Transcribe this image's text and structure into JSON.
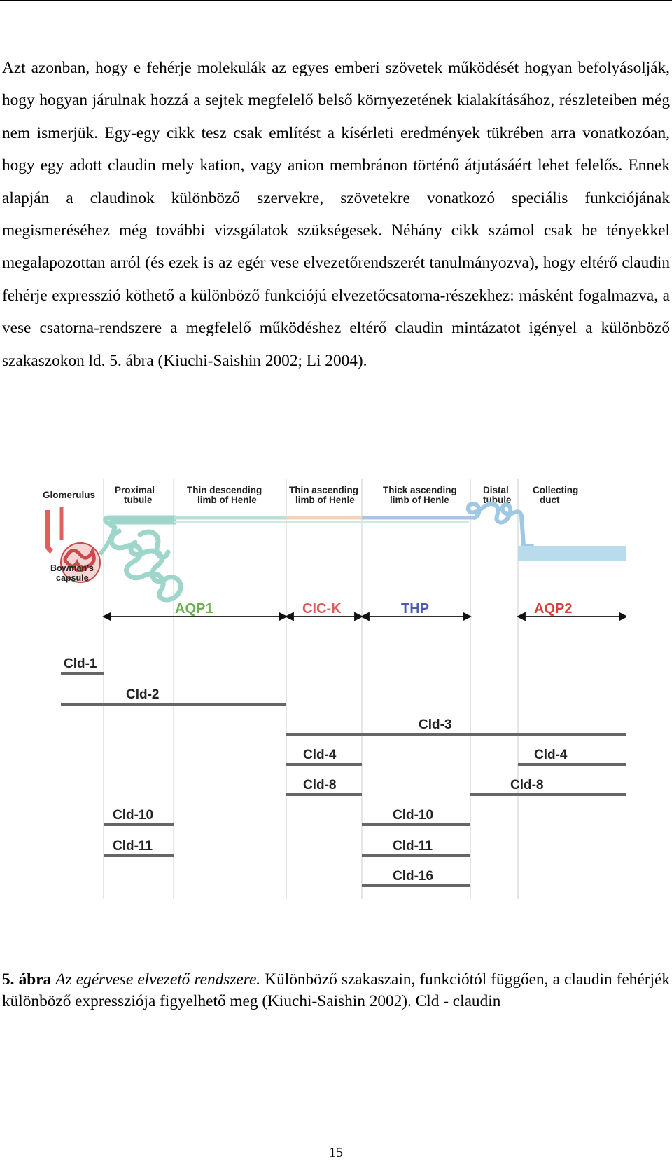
{
  "paragraph": "Azt azonban, hogy e fehérje molekulák az egyes emberi szövetek működését hogyan befolyásolják, hogy hogyan járulnak hozzá a sejtek megfelelő belső környezetének kialakításához, részleteiben még nem ismerjük. Egy-egy cikk tesz csak említést a kísérleti eredmények tükrében arra vonatkozóan, hogy egy adott claudin mely kation, vagy anion membránon történő átjutásáért lehet felelős. Ennek alapján a claudinok különböző szervekre, szövetekre vonatkozó speciális funkciójának megismeréséhez még további vizsgálatok szükségesek. Néhány cikk számol csak be tényekkel megalapozottan arról (és ezek is az egér vese elvezetőrendszerét tanulmányozva), hogy eltérő claudin fehérje expresszió köthető a különböző funkciójú elvezetőcsatorna-részekhez: másként fogalmazva, a vese csatorna-rendszere a megfelelő működéshez eltérő claudin mintázatot igényel a különböző szakaszokon ld. 5. ábra (Kiuchi-Saishin 2002; Li 2004).",
  "figure": {
    "segments": [
      [
        "Glomerulus"
      ],
      [
        "Proximal",
        "tubule"
      ],
      [
        "Thin descending",
        "limb of Henle"
      ],
      [
        "Thin ascending",
        "limb of Henle"
      ],
      [
        "Thick ascending",
        "limb of Henle"
      ],
      [
        "Distal",
        "tubule"
      ],
      [
        "Collecting",
        "duct"
      ]
    ],
    "capsule_label": [
      "Bowman's",
      "capsule"
    ],
    "markers": [
      {
        "name": "AQP1",
        "color": "#6ab04c"
      },
      {
        "name": "ClC-K",
        "color": "#e05a5a"
      },
      {
        "name": "THP",
        "color": "#4a5cae"
      },
      {
        "name": "AQP2",
        "color": "#d9403a"
      }
    ],
    "claudins": [
      {
        "label": "Cld-1",
        "segments": "Glomerulus"
      },
      {
        "label": "Cld-2",
        "segments": "Glomerulus to Thin descending limb of Henle"
      },
      {
        "label": "Cld-3",
        "segments": "Thin ascending limb of Henle to Collecting duct"
      },
      {
        "label": "Cld-4",
        "segments": "Thin ascending limb of Henle"
      },
      {
        "label": "Cld-4",
        "segments": "Collecting duct"
      },
      {
        "label": "Cld-8",
        "segments": "Thin ascending limb of Henle"
      },
      {
        "label": "Cld-8",
        "segments": "Distal tubule to Collecting duct"
      },
      {
        "label": "Cld-10",
        "segments": "Proximal tubule"
      },
      {
        "label": "Cld-10",
        "segments": "Thick ascending limb of Henle"
      },
      {
        "label": "Cld-11",
        "segments": "Proximal tubule"
      },
      {
        "label": "Cld-11",
        "segments": "Thick ascending limb of Henle"
      },
      {
        "label": "Cld-16",
        "segments": "Thick ascending limb of Henle"
      }
    ]
  },
  "caption": {
    "number": "5. ábra",
    "title": "Az egérvese elvezető rendszere.",
    "text": "Különböző szakaszain, funkciótól függően, a claudin fehérjék különböző expressziója figyelhető meg (Kiuchi-Saishin 2002). Cld - claudin"
  },
  "page_number": "15"
}
